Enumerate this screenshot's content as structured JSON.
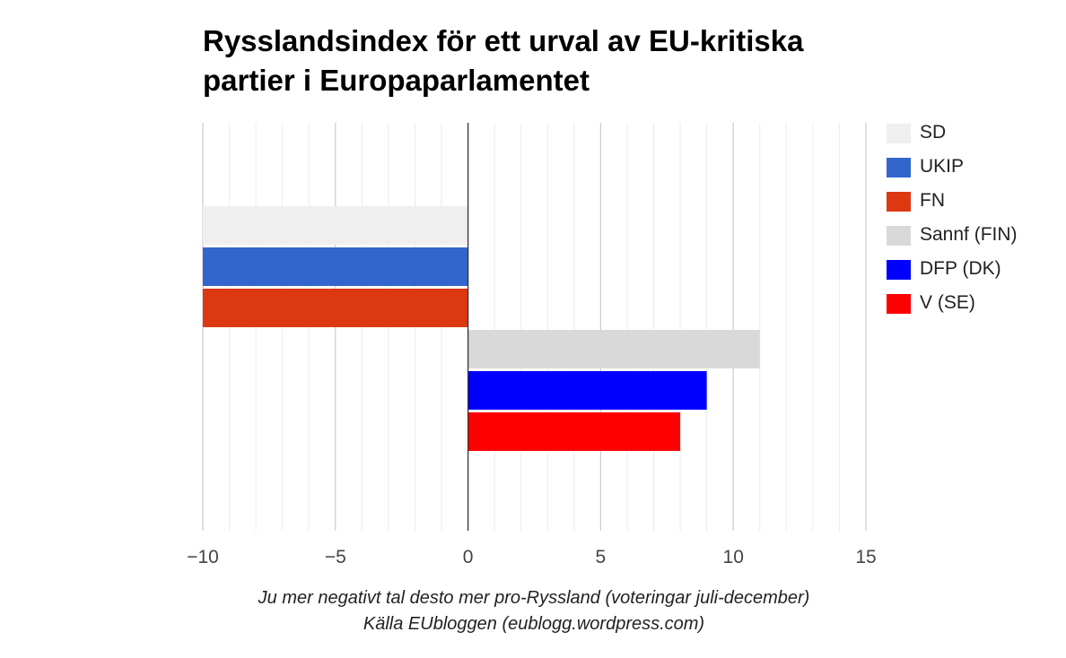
{
  "chart_data": {
    "type": "bar",
    "orientation": "horizontal",
    "title": [
      "Rysslandsindex för ett urval av EU-kritiska",
      "partier i Europaparlamentet"
    ],
    "categories": [
      ""
    ],
    "series": [
      {
        "name": "SD",
        "value": -10,
        "color": "#efefef"
      },
      {
        "name": "UKIP",
        "value": -10,
        "color": "#3366cc"
      },
      {
        "name": "FN",
        "value": -10,
        "color": "#dc3912"
      },
      {
        "name": "Sannf (FIN)",
        "value": 11,
        "color": "#d9d9d9"
      },
      {
        "name": "DFP (DK)",
        "value": 9,
        "color": "#0000ff"
      },
      {
        "name": "V (SE)",
        "value": 8,
        "color": "#ff0000"
      }
    ],
    "xlim": [
      -10,
      15
    ],
    "x_ticks": [
      -10,
      -5,
      0,
      5,
      10,
      15
    ],
    "x_tick_labels": [
      "−10",
      "−5",
      "0",
      "5",
      "10",
      "15"
    ],
    "grid": true,
    "legend_position": "right",
    "footer": [
      "Ju mer negativt tal desto mer pro-Ryssland (voteringar juli-december)",
      "Källa EUbloggen (eublogg.wordpress.com)"
    ]
  }
}
